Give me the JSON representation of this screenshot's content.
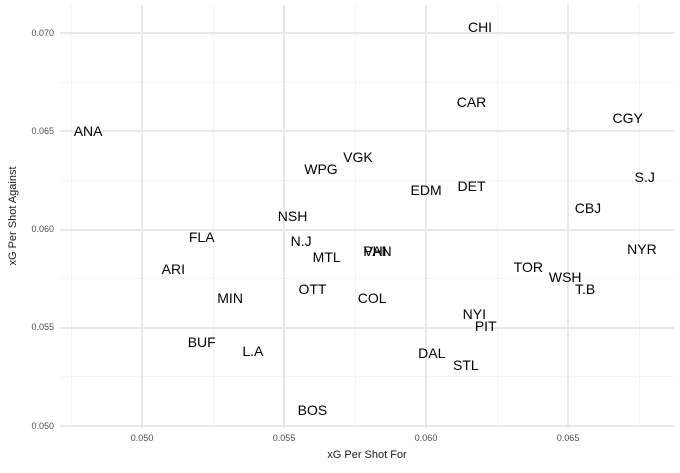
{
  "chart_data": {
    "type": "scatter",
    "title": "",
    "xlabel": "xG Per Shot For",
    "ylabel": "xG Per Shot Against",
    "xlim": [
      0.04711,
      0.06873
    ],
    "ylim": [
      0.0499,
      0.07143
    ],
    "x_major_ticks": [
      0.05,
      0.055,
      0.06,
      0.065
    ],
    "x_tick_labels": [
      "0.050",
      "0.055",
      "0.060",
      "0.065"
    ],
    "y_major_ticks": [
      0.05,
      0.055,
      0.06,
      0.065,
      0.07
    ],
    "y_tick_labels": [
      "0.050",
      "0.055",
      "0.060",
      "0.065",
      "0.070"
    ],
    "x_minor_ticks": [
      0.0475,
      0.0525,
      0.0575,
      0.0625,
      0.0675
    ],
    "y_minor_ticks": [
      0.0525,
      0.0575,
      0.0625,
      0.0675
    ],
    "grid": "major-and-minor",
    "legend": false,
    "marker": "team-abbreviation-text",
    "points": [
      {
        "label": "ANA",
        "x": 0.0481,
        "y": 0.065
      },
      {
        "label": "ARI",
        "x": 0.0511,
        "y": 0.058
      },
      {
        "label": "BOS",
        "x": 0.056,
        "y": 0.0508
      },
      {
        "label": "BUF",
        "x": 0.0521,
        "y": 0.0543
      },
      {
        "label": "CAR",
        "x": 0.0616,
        "y": 0.0665
      },
      {
        "label": "CBJ",
        "x": 0.0657,
        "y": 0.0611
      },
      {
        "label": "CGY",
        "x": 0.0671,
        "y": 0.0657
      },
      {
        "label": "CHI",
        "x": 0.0619,
        "y": 0.0703
      },
      {
        "label": "COL",
        "x": 0.0581,
        "y": 0.0565
      },
      {
        "label": "DAL",
        "x": 0.0602,
        "y": 0.0537
      },
      {
        "label": "DET",
        "x": 0.0616,
        "y": 0.0622
      },
      {
        "label": "EDM",
        "x": 0.06,
        "y": 0.062
      },
      {
        "label": "FLA",
        "x": 0.0521,
        "y": 0.0596
      },
      {
        "label": "L.A",
        "x": 0.0539,
        "y": 0.0538
      },
      {
        "label": "MIN",
        "x": 0.0531,
        "y": 0.0565
      },
      {
        "label": "MTL",
        "x": 0.0565,
        "y": 0.0586
      },
      {
        "label": "N.J",
        "x": 0.0556,
        "y": 0.0594
      },
      {
        "label": "NSH",
        "x": 0.0553,
        "y": 0.0607
      },
      {
        "label": "NYI",
        "x": 0.0617,
        "y": 0.0557
      },
      {
        "label": "NYR",
        "x": 0.0676,
        "y": 0.059
      },
      {
        "label": "OTT",
        "x": 0.056,
        "y": 0.057
      },
      {
        "label": "PHI",
        "x": 0.0582,
        "y": 0.0589
      },
      {
        "label": "PIT",
        "x": 0.0621,
        "y": 0.0551
      },
      {
        "label": "S.J",
        "x": 0.0677,
        "y": 0.0627
      },
      {
        "label": "STL",
        "x": 0.0614,
        "y": 0.0531
      },
      {
        "label": "T.B",
        "x": 0.0656,
        "y": 0.057
      },
      {
        "label": "TOR",
        "x": 0.0636,
        "y": 0.0581
      },
      {
        "label": "VAN",
        "x": 0.0583,
        "y": 0.0589
      },
      {
        "label": "VGK",
        "x": 0.0576,
        "y": 0.0637
      },
      {
        "label": "WPG",
        "x": 0.0563,
        "y": 0.0631
      },
      {
        "label": "WSH",
        "x": 0.0649,
        "y": 0.0576
      }
    ]
  },
  "style": {
    "background_color": "#ffffff",
    "major_grid_color": "#e8e8e8",
    "minor_grid_color": "#f4f4f4",
    "tick_label_color": "#4d4d4d",
    "axis_title_color": "#1a1a1a",
    "point_label_color": "#000000"
  }
}
